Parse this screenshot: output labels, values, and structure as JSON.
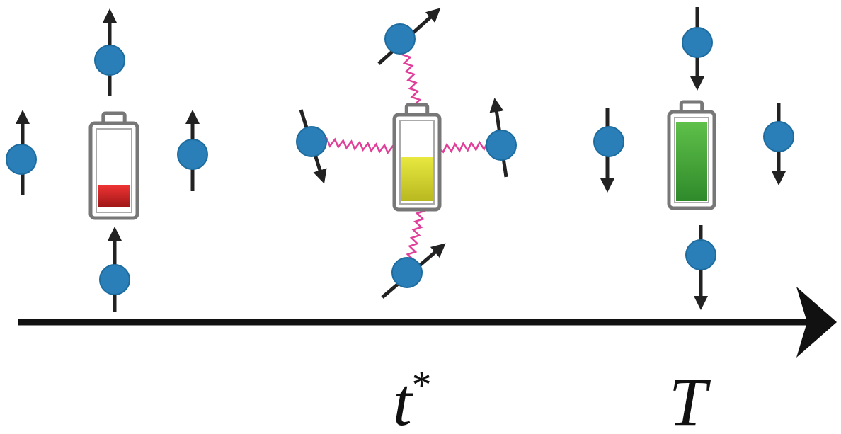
{
  "axis": {
    "labels": [
      {
        "text": "t",
        "superscript": "*"
      },
      {
        "text": "T"
      }
    ]
  }
}
